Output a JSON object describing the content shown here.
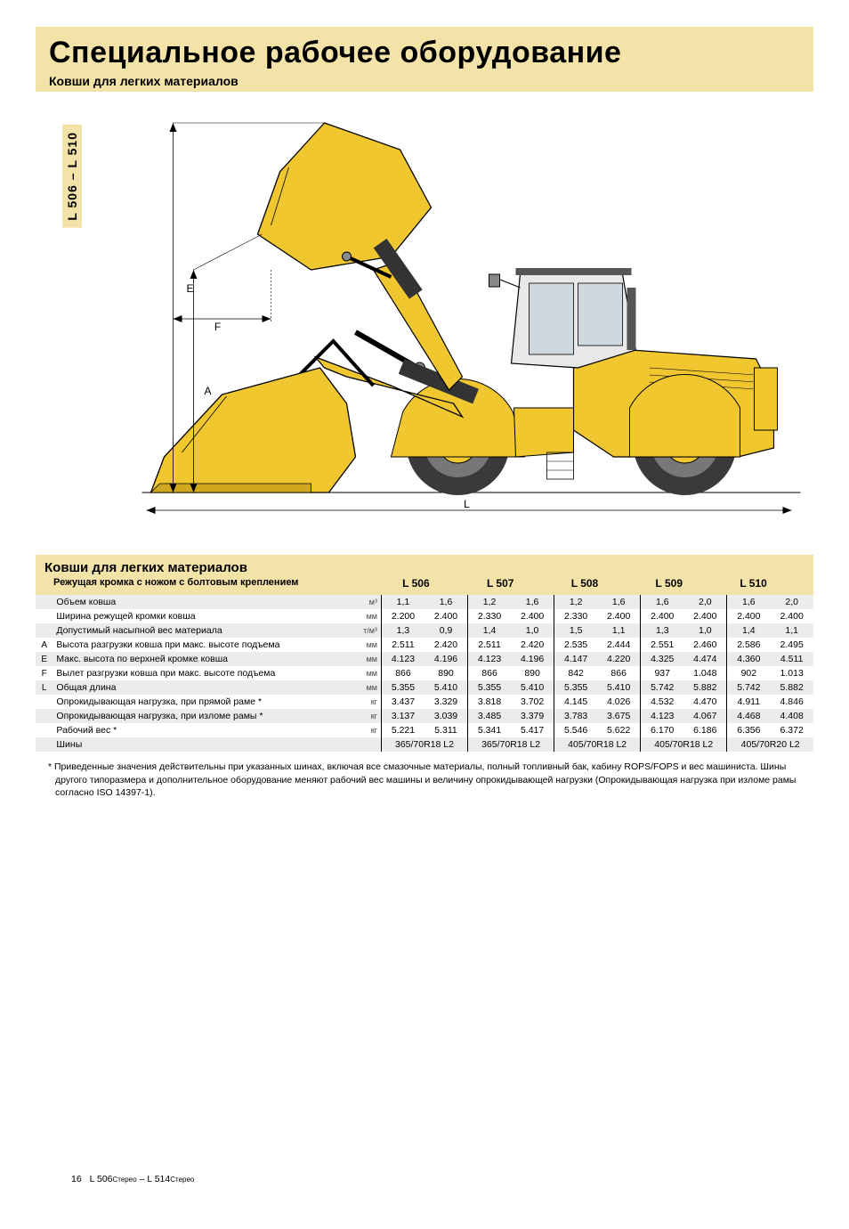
{
  "title": "Специальное рабочее оборудование",
  "subtitle": "Ковши для легких материалов",
  "side_tab": "L 506 – L 510",
  "figure": {
    "labels": {
      "E": "E",
      "F": "F",
      "A": "A",
      "L": "L"
    },
    "stroke": "#000000",
    "machine_fill": "#f0c72e",
    "tire_fill": "#3a3a3a",
    "bg": "#ffffff"
  },
  "table": {
    "section_title": "Ковши для легких материалов",
    "row_title": "Режущая кромка с ножом с болтовым креплением",
    "models": [
      "L 506",
      "L 507",
      "L 508",
      "L 509",
      "L 510"
    ],
    "rows": [
      {
        "letter": "",
        "param": "Объем ковша",
        "unit": "м³",
        "vals": [
          "1,1",
          "1,6",
          "1,2",
          "1,6",
          "1,2",
          "1,6",
          "1,6",
          "2,0",
          "1,6",
          "2,0"
        ],
        "shade": true
      },
      {
        "letter": "",
        "param": "Ширина режущей кромки ковша",
        "unit": "мм",
        "vals": [
          "2.200",
          "2.400",
          "2.330",
          "2.400",
          "2.330",
          "2.400",
          "2.400",
          "2.400",
          "2.400",
          "2.400"
        ],
        "shade": false
      },
      {
        "letter": "",
        "param": "Допустимый насыпной вес материала",
        "unit": "т/м³",
        "vals": [
          "1,3",
          "0,9",
          "1,4",
          "1,0",
          "1,5",
          "1,1",
          "1,3",
          "1,0",
          "1,4",
          "1,1"
        ],
        "shade": true
      },
      {
        "letter": "A",
        "param": "Высота разгрузки ковша при макс. высоте подъема",
        "unit": "мм",
        "vals": [
          "2.511",
          "2.420",
          "2.511",
          "2.420",
          "2.535",
          "2.444",
          "2.551",
          "2.460",
          "2.586",
          "2.495"
        ],
        "shade": false
      },
      {
        "letter": "E",
        "param": "Макс. высота по верхней кромке ковша",
        "unit": "мм",
        "vals": [
          "4.123",
          "4.196",
          "4.123",
          "4.196",
          "4.147",
          "4.220",
          "4.325",
          "4.474",
          "4.360",
          "4.511"
        ],
        "shade": true
      },
      {
        "letter": "F",
        "param": "Вылет разгрузки ковша при макс. высоте подъема",
        "unit": "мм",
        "vals": [
          "866",
          "890",
          "866",
          "890",
          "842",
          "866",
          "937",
          "1.048",
          "902",
          "1.013"
        ],
        "shade": false
      },
      {
        "letter": "L",
        "param": "Общая длина",
        "unit": "мм",
        "vals": [
          "5.355",
          "5.410",
          "5.355",
          "5.410",
          "5.355",
          "5.410",
          "5.742",
          "5.882",
          "5.742",
          "5.882"
        ],
        "shade": true
      },
      {
        "letter": "",
        "param": "Опрокидывающая нагрузка, при прямой раме *",
        "unit": "кг",
        "vals": [
          "3.437",
          "3.329",
          "3.818",
          "3.702",
          "4.145",
          "4.026",
          "4.532",
          "4.470",
          "4.911",
          "4.846"
        ],
        "shade": false
      },
      {
        "letter": "",
        "param": "Опрокидывающая нагрузка, при изломе рамы *",
        "unit": "кг",
        "vals": [
          "3.137",
          "3.039",
          "3.485",
          "3.379",
          "3.783",
          "3.675",
          "4.123",
          "4.067",
          "4.468",
          "4.408"
        ],
        "shade": true
      },
      {
        "letter": "",
        "param": "Рабочий вес *",
        "unit": "кг",
        "vals": [
          "5.221",
          "5.311",
          "5.341",
          "5.417",
          "5.546",
          "5.622",
          "6.170",
          "6.186",
          "6.356",
          "6.372"
        ],
        "shade": false
      }
    ],
    "tire_row": {
      "param": "Шины",
      "vals": [
        "365/70R18 L2",
        "365/70R18 L2",
        "405/70R18 L2",
        "405/70R18 L2",
        "405/70R20 L2"
      ],
      "shade": true
    }
  },
  "footnote": "* Приведенные значения действительны при указанных шинах, включая все смазочные материалы, полный топливный бак, кабину ROPS/FOPS и вес машиниста. Шины другого типоразмера и дополнительное оборудование меняют рабочий вес машины и величину опрокидывающей нагрузки (Опрокидывающая нагрузка при изломе рамы согласно ISO 14397-1).",
  "footer": {
    "page": "16",
    "text": "L 506Стерео – L 514Стерео"
  }
}
